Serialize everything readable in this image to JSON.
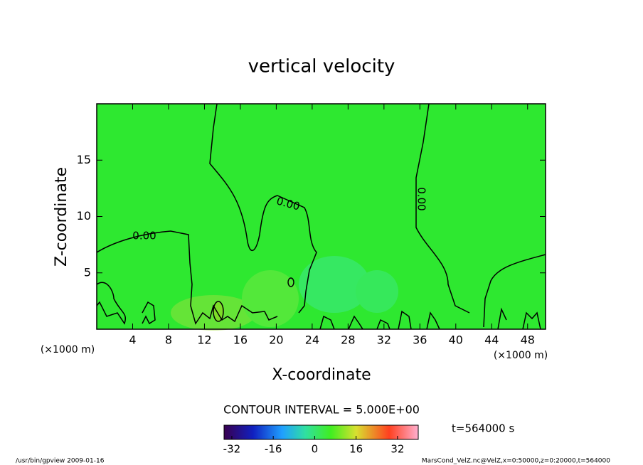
{
  "chart_data": {
    "type": "contour",
    "title": "vertical velocity",
    "xlabel": "X-coordinate",
    "ylabel": "Z-coordinate",
    "x_unit_label": "(×1000 m)",
    "xlim": [
      0,
      50
    ],
    "xticks": [
      4,
      8,
      12,
      16,
      20,
      24,
      28,
      32,
      36,
      40,
      44,
      48
    ],
    "ylim": [
      0,
      20
    ],
    "yticks": [
      5,
      10,
      15
    ],
    "contour_labels": [
      "0.00",
      "0.00",
      "0.00"
    ],
    "contour_interval": "CONTOUR INTERVAL = 5.000E+00",
    "colorbar": {
      "lim": [
        -35,
        40
      ],
      "ticks": [
        -32,
        -16,
        0,
        16,
        32
      ]
    },
    "time_label": "t=564000 s",
    "footer_left": "/usr/bin/gpview   2009-01-16",
    "footer_right": "MarsCond_VelZ.nc@VelZ,x=0:50000,z=0:20000,t=564000"
  }
}
